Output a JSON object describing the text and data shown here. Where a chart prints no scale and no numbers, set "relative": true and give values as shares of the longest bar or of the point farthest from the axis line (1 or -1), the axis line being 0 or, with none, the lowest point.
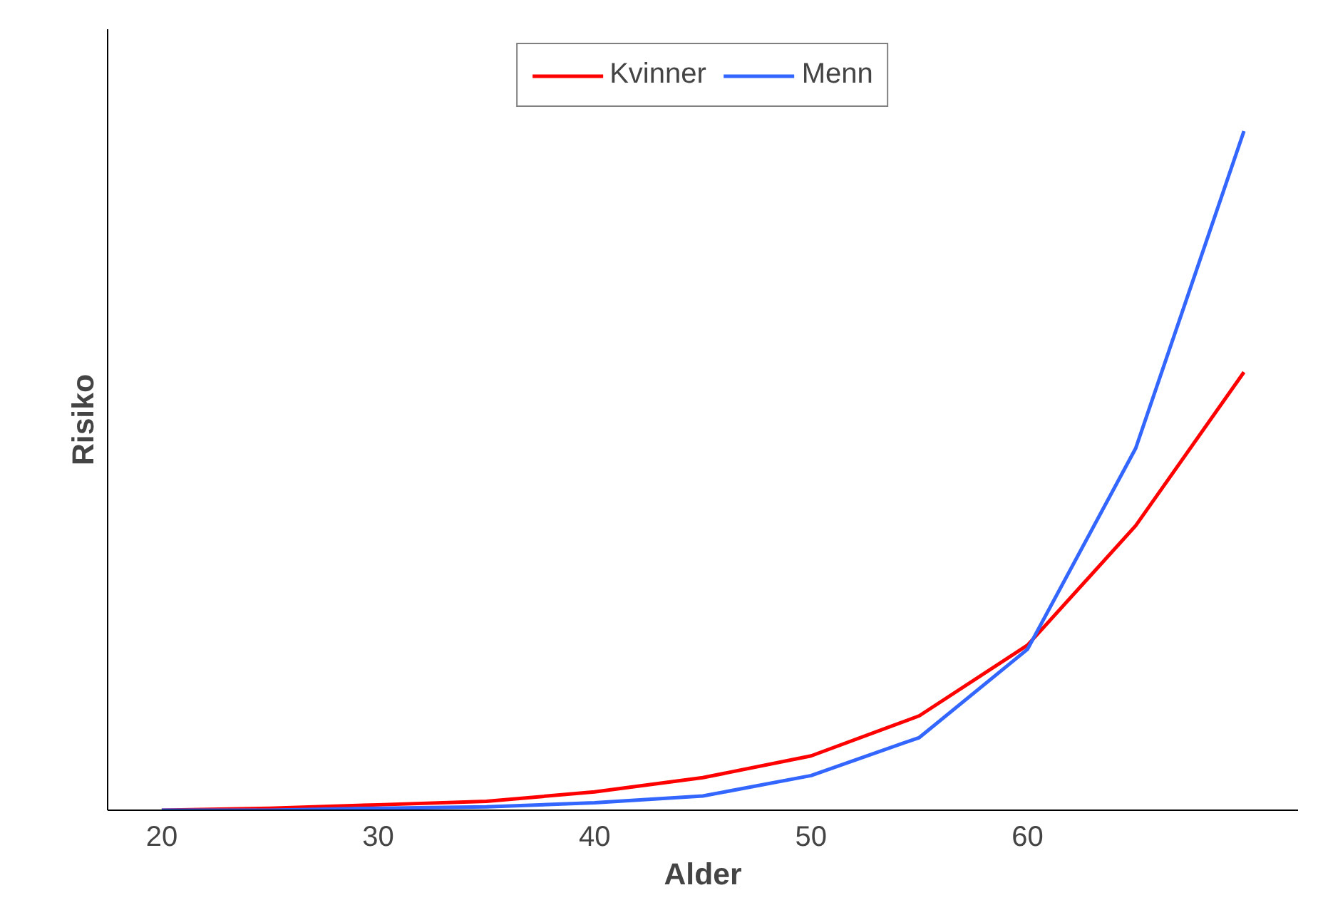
{
  "chart_data": {
    "type": "line",
    "xlabel": "Alder",
    "ylabel": "Risiko",
    "relative": true,
    "x": [
      20,
      25,
      30,
      35,
      40,
      45,
      50,
      55,
      60,
      65,
      70
    ],
    "xlim": [
      17.5,
      72.5
    ],
    "xticks": [
      20,
      30,
      40,
      50,
      60
    ],
    "series": [
      {
        "name": "Kvinner",
        "color": "#ff0000",
        "values": [
          0,
          0.003,
          0.008,
          0.013,
          0.027,
          0.048,
          0.08,
          0.139,
          0.243,
          0.419,
          0.645
        ]
      },
      {
        "name": "Menn",
        "color": "#3366ff",
        "values": [
          0,
          0,
          0.003,
          0.005,
          0.011,
          0.021,
          0.051,
          0.107,
          0.237,
          0.533,
          1
        ]
      }
    ],
    "legend": "top",
    "grid": false,
    "marker": "none",
    "line_style": "solid"
  }
}
